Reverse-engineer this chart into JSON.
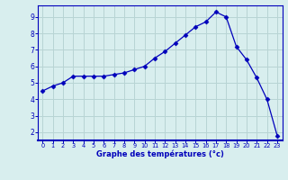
{
  "hours": [
    0,
    1,
    2,
    3,
    4,
    5,
    6,
    7,
    8,
    9,
    10,
    11,
    12,
    13,
    14,
    15,
    16,
    17,
    18,
    19,
    20,
    21,
    22,
    23
  ],
  "temps": [
    4.5,
    4.8,
    5.0,
    5.4,
    5.4,
    5.4,
    5.4,
    5.5,
    5.6,
    5.8,
    6.0,
    6.5,
    6.9,
    7.4,
    7.9,
    8.4,
    8.7,
    9.3,
    9.0,
    7.2,
    6.4,
    5.3,
    4.0,
    1.8
  ],
  "line_color": "#0000bb",
  "marker": "D",
  "marker_size": 2.5,
  "bg_color": "#d8eeee",
  "grid_color": "#b8d4d4",
  "xlabel": "Graphe des températures (°c)",
  "xlabel_color": "#0000bb",
  "tick_color": "#0000bb",
  "axis_color": "#0000bb",
  "xlim": [
    -0.5,
    23.5
  ],
  "ylim": [
    1.5,
    9.7
  ],
  "yticks": [
    2,
    3,
    4,
    5,
    6,
    7,
    8,
    9
  ],
  "xticks": [
    0,
    1,
    2,
    3,
    4,
    5,
    6,
    7,
    8,
    9,
    10,
    11,
    12,
    13,
    14,
    15,
    16,
    17,
    18,
    19,
    20,
    21,
    22,
    23
  ]
}
